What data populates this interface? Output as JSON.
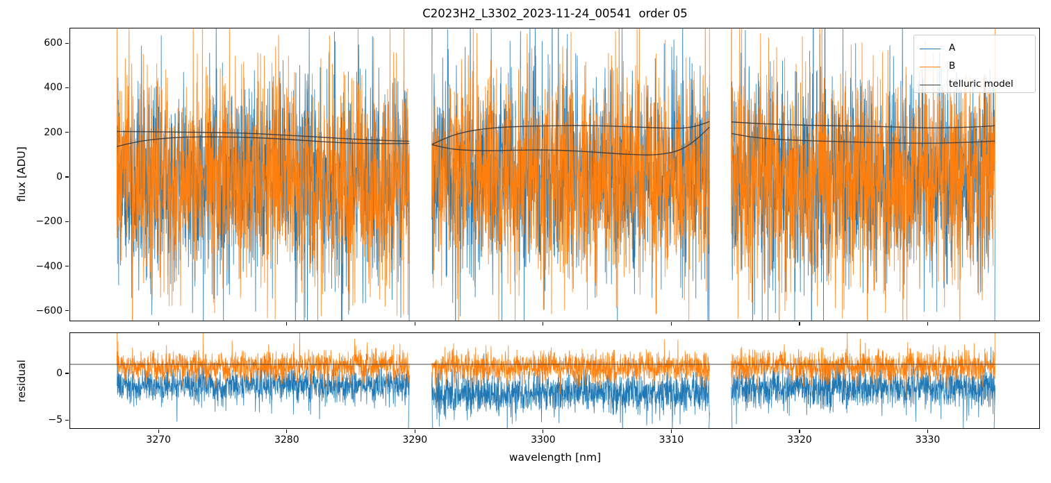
{
  "chart_data": {
    "type": "line",
    "title": "C2023H2_L3302_2023-11-24_00541  order 05",
    "xlabel": "wavelength [nm]",
    "xlim": [
      3263.05,
      3338.75
    ],
    "xticks": [
      3270,
      3280,
      3290,
      3300,
      3310,
      3320,
      3330
    ],
    "panels": {
      "flux": {
        "ylabel": "flux [ADU]",
        "ylim": [
          -647,
          669
        ],
        "yticks": [
          600,
          400,
          200,
          0,
          -200,
          -400,
          -600
        ]
      },
      "residual": {
        "ylabel": "residual",
        "ylim": [
          -5.95,
          4.4
        ],
        "yticks": [
          0,
          -5
        ],
        "reference_line": 1.0,
        "reference_line_color": "#444444"
      }
    },
    "legend": [
      {
        "label": "A",
        "color": "#1f77b4"
      },
      {
        "label": "B",
        "color": "#ff7f0e"
      },
      {
        "label": "telluric model",
        "color": "#3a3a3a"
      }
    ],
    "segments": [
      {
        "xrange": [
          3266.7,
          3289.55
        ]
      },
      {
        "xrange": [
          3291.3,
          3313.0
        ]
      },
      {
        "xrange": [
          3314.7,
          3335.3
        ]
      }
    ],
    "noise": {
      "points_per_segment": 1300,
      "flux": {
        "A": {
          "mean": 0,
          "sigma": 230
        },
        "B": {
          "mean": 0,
          "sigma": 235
        },
        "tail_prob": 0.015,
        "tail_scale": 2.4
      },
      "residual": {
        "A": {
          "means": [
            -1.2,
            -2.1,
            -1.6
          ],
          "sigmas": [
            1.0,
            1.15,
            1.1
          ]
        },
        "B": {
          "mean": 0.75,
          "sigma": 0.85
        },
        "tail_prob": 0.02,
        "tail_scale": 1.7
      }
    },
    "telluric_model": {
      "color": "#3a3a3a",
      "segments": [
        {
          "upper": [
            [
              3266.7,
              205
            ],
            [
              3269,
              204
            ],
            [
              3272,
              202
            ],
            [
              3275,
              200
            ],
            [
              3277,
              197
            ],
            [
              3279,
              191
            ],
            [
              3281,
              185
            ],
            [
              3283,
              178
            ],
            [
              3285,
              171
            ],
            [
              3287,
              166
            ],
            [
              3289.55,
              161
            ]
          ],
          "lower": [
            [
              3266.7,
              137
            ],
            [
              3268,
              157
            ],
            [
              3270,
              173
            ],
            [
              3272,
              180
            ],
            [
              3274,
              181
            ],
            [
              3276,
              180
            ],
            [
              3278,
              176
            ],
            [
              3280,
              170
            ],
            [
              3282,
              162
            ],
            [
              3284,
              155
            ],
            [
              3286,
              151
            ],
            [
              3288,
              150
            ],
            [
              3289.55,
              151
            ]
          ]
        },
        {
          "upper": [
            [
              3291.3,
              146
            ],
            [
              3292.5,
              180
            ],
            [
              3294,
              205
            ],
            [
              3295.5,
              218
            ],
            [
              3297,
              225
            ],
            [
              3299,
              229
            ],
            [
              3301,
              231
            ],
            [
              3303,
              232
            ],
            [
              3305,
              230
            ],
            [
              3307,
              226
            ],
            [
              3309,
              221
            ],
            [
              3310.5,
              219
            ],
            [
              3311.5,
              223
            ],
            [
              3312.3,
              235
            ],
            [
              3313.0,
              250
            ]
          ],
          "lower": [
            [
              3291.3,
              146
            ],
            [
              3292.5,
              128
            ],
            [
              3294,
              120
            ],
            [
              3296,
              118
            ],
            [
              3298,
              121
            ],
            [
              3300,
              122
            ],
            [
              3302,
              119
            ],
            [
              3304,
              112
            ],
            [
              3306,
              104
            ],
            [
              3307.5,
              100
            ],
            [
              3308.5,
              99
            ],
            [
              3309.5,
              104
            ],
            [
              3310.5,
              117
            ],
            [
              3311.3,
              140
            ],
            [
              3312.2,
              180
            ],
            [
              3313.0,
              225
            ]
          ]
        },
        {
          "upper": [
            [
              3314.7,
              248
            ],
            [
              3316,
              243
            ],
            [
              3318,
              238
            ],
            [
              3320,
              234
            ],
            [
              3322,
              231
            ],
            [
              3324,
              230
            ],
            [
              3326,
              228
            ],
            [
              3328,
              224
            ],
            [
              3330,
              221
            ],
            [
              3332,
              222
            ],
            [
              3334,
              226
            ],
            [
              3335.3,
              231
            ]
          ],
          "lower": [
            [
              3314.7,
              196
            ],
            [
              3316,
              181
            ],
            [
              3318,
              170
            ],
            [
              3320,
              165
            ],
            [
              3322,
              161
            ],
            [
              3324,
              158
            ],
            [
              3326,
              155
            ],
            [
              3328,
              153
            ],
            [
              3330,
              152
            ],
            [
              3332,
              154
            ],
            [
              3334,
              158
            ],
            [
              3335.3,
              162
            ]
          ]
        }
      ]
    }
  }
}
